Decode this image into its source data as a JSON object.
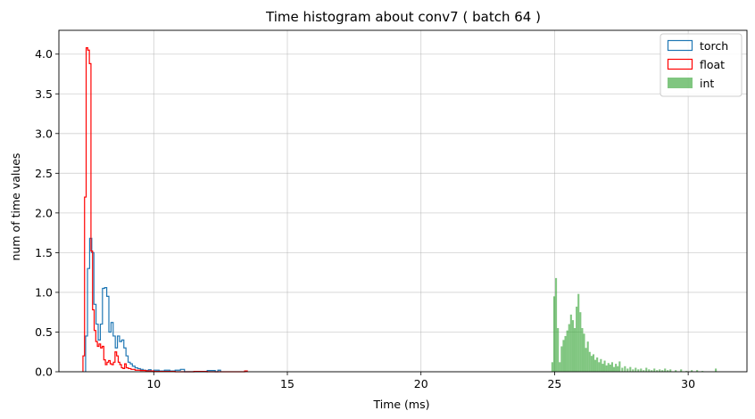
{
  "chart_data": {
    "type": "histogram",
    "title": "Time histogram about conv7 ( batch 64 )",
    "xlabel": "Time (ms)",
    "ylabel": "num of time values",
    "xlim": [
      6.45,
      32.2
    ],
    "ylim": [
      0,
      4.3
    ],
    "xticks": [
      10,
      15,
      20,
      25,
      30
    ],
    "yticks": [
      0.0,
      0.5,
      1.0,
      1.5,
      2.0,
      2.5,
      3.0,
      3.5,
      4.0
    ],
    "grid": true,
    "legend_position": "top-right",
    "series": [
      {
        "name": "torch",
        "style": "step",
        "color": "#1f77b4",
        "points": [
          [
            7.45,
            0.0
          ],
          [
            7.45,
            0.45
          ],
          [
            7.52,
            1.3
          ],
          [
            7.6,
            1.68
          ],
          [
            7.68,
            1.5
          ],
          [
            7.76,
            0.85
          ],
          [
            7.84,
            0.6
          ],
          [
            7.92,
            0.4
          ],
          [
            8.0,
            0.6
          ],
          [
            8.08,
            1.05
          ],
          [
            8.16,
            1.06
          ],
          [
            8.24,
            0.95
          ],
          [
            8.32,
            0.5
          ],
          [
            8.4,
            0.62
          ],
          [
            8.48,
            0.45
          ],
          [
            8.56,
            0.3
          ],
          [
            8.64,
            0.45
          ],
          [
            8.72,
            0.38
          ],
          [
            8.8,
            0.4
          ],
          [
            8.88,
            0.3
          ],
          [
            8.96,
            0.2
          ],
          [
            9.04,
            0.12
          ],
          [
            9.12,
            0.1
          ],
          [
            9.2,
            0.07
          ],
          [
            9.3,
            0.05
          ],
          [
            9.4,
            0.04
          ],
          [
            9.5,
            0.03
          ],
          [
            9.6,
            0.02
          ],
          [
            9.7,
            0.015
          ],
          [
            9.8,
            0.025
          ],
          [
            9.9,
            0.01
          ],
          [
            10.0,
            0.02
          ],
          [
            10.2,
            0.01
          ],
          [
            10.4,
            0.02
          ],
          [
            10.6,
            0.01
          ],
          [
            10.8,
            0.02
          ],
          [
            11.0,
            0.03
          ],
          [
            11.15,
            0.0
          ],
          [
            12.0,
            0.015
          ],
          [
            12.3,
            0.0
          ],
          [
            12.4,
            0.02
          ],
          [
            12.5,
            0.0
          ]
        ],
        "end_x": 12.5
      },
      {
        "name": "float",
        "style": "step",
        "color": "#ff0000",
        "points": [
          [
            7.35,
            0.0
          ],
          [
            7.35,
            0.2
          ],
          [
            7.41,
            2.2
          ],
          [
            7.47,
            4.08
          ],
          [
            7.53,
            4.05
          ],
          [
            7.59,
            3.88
          ],
          [
            7.65,
            1.52
          ],
          [
            7.71,
            0.78
          ],
          [
            7.77,
            0.52
          ],
          [
            7.83,
            0.38
          ],
          [
            7.89,
            0.32
          ],
          [
            7.95,
            0.35
          ],
          [
            8.01,
            0.3
          ],
          [
            8.07,
            0.32
          ],
          [
            8.13,
            0.15
          ],
          [
            8.19,
            0.09
          ],
          [
            8.25,
            0.12
          ],
          [
            8.31,
            0.14
          ],
          [
            8.37,
            0.1
          ],
          [
            8.43,
            0.09
          ],
          [
            8.49,
            0.12
          ],
          [
            8.55,
            0.25
          ],
          [
            8.61,
            0.2
          ],
          [
            8.67,
            0.12
          ],
          [
            8.73,
            0.09
          ],
          [
            8.79,
            0.05
          ],
          [
            8.85,
            0.04
          ],
          [
            8.91,
            0.1
          ],
          [
            8.97,
            0.05
          ],
          [
            9.05,
            0.04
          ],
          [
            9.15,
            0.03
          ],
          [
            9.3,
            0.02
          ],
          [
            9.5,
            0.015
          ],
          [
            9.7,
            0.01
          ],
          [
            10.0,
            0.005
          ],
          [
            10.8,
            0.0
          ],
          [
            11.5,
            0.005
          ],
          [
            12.0,
            0.0
          ],
          [
            13.4,
            0.01
          ]
        ],
        "end_x": 13.5
      },
      {
        "name": "int",
        "style": "filled-bars",
        "color": "#2ca02c",
        "opacity": 0.6,
        "bin_width": 0.07,
        "x": [
          24.88,
          24.95,
          25.02,
          25.09,
          25.16,
          25.23,
          25.3,
          25.37,
          25.44,
          25.51,
          25.58,
          25.65,
          25.72,
          25.79,
          25.86,
          25.93,
          26.0,
          26.07,
          26.14,
          26.21,
          26.28,
          26.35,
          26.42,
          26.49,
          26.56,
          26.63,
          26.7,
          26.77,
          26.84,
          26.91,
          26.98,
          27.05,
          27.12,
          27.19,
          27.26,
          27.33,
          27.4,
          27.5,
          27.6,
          27.7,
          27.8,
          27.9,
          28.0,
          28.1,
          28.2,
          28.3,
          28.4,
          28.5,
          28.6,
          28.7,
          28.8,
          28.9,
          29.0,
          29.1,
          29.2,
          29.3,
          29.5,
          29.7,
          29.9,
          30.1,
          30.3,
          30.5,
          31.0
        ],
        "values": [
          0.12,
          0.95,
          1.18,
          0.55,
          0.12,
          0.32,
          0.4,
          0.45,
          0.52,
          0.6,
          0.72,
          0.65,
          0.55,
          0.82,
          0.98,
          0.75,
          0.55,
          0.48,
          0.3,
          0.38,
          0.25,
          0.2,
          0.22,
          0.15,
          0.18,
          0.12,
          0.16,
          0.1,
          0.14,
          0.08,
          0.11,
          0.09,
          0.12,
          0.06,
          0.1,
          0.07,
          0.13,
          0.05,
          0.07,
          0.04,
          0.06,
          0.03,
          0.05,
          0.03,
          0.04,
          0.02,
          0.05,
          0.03,
          0.02,
          0.04,
          0.02,
          0.03,
          0.02,
          0.04,
          0.02,
          0.03,
          0.02,
          0.03,
          0.01,
          0.02,
          0.02,
          0.01,
          0.04
        ]
      }
    ]
  }
}
